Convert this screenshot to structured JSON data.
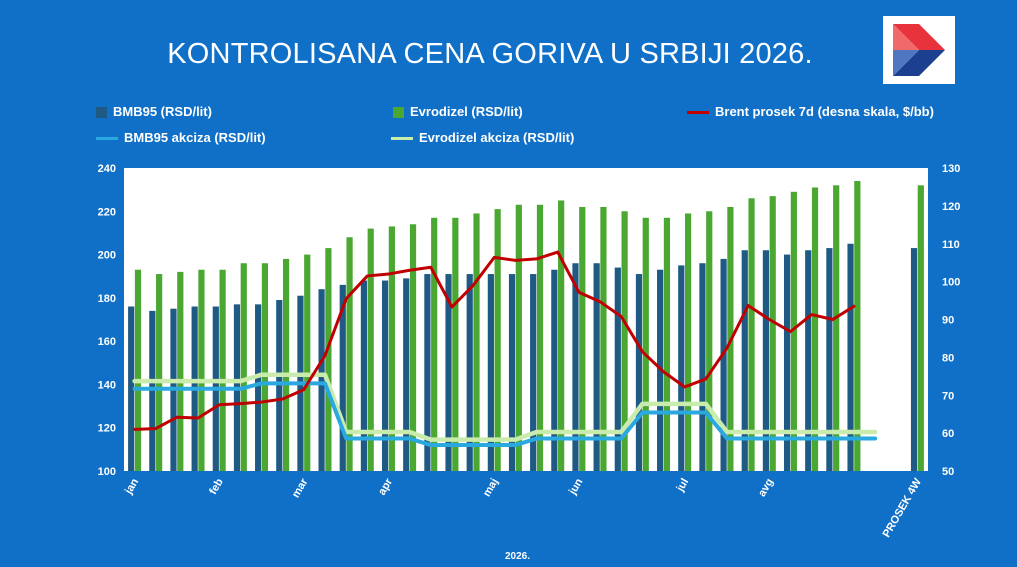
{
  "chart_data": {
    "type": "bar",
    "title": "KONTROLISANA CENA GORIVA  U SRBIJI 2026.",
    "xlabel": "2026.",
    "ylabel": "",
    "ylim": [
      100,
      240
    ],
    "y2lim": [
      50,
      130
    ],
    "yticks": [
      100,
      120,
      140,
      160,
      180,
      200,
      220,
      240
    ],
    "y2ticks": [
      50,
      60,
      70,
      80,
      90,
      100,
      110,
      120,
      130
    ],
    "grid": false,
    "legend_position": "top",
    "x_tick_labels": [
      "jan",
      "feb",
      "mar",
      "apr",
      "maj",
      "jun",
      "jul",
      "avg",
      "PROSEK 4W"
    ],
    "x_tick_positions": [
      0,
      4,
      8,
      12,
      17,
      21,
      26,
      30,
      37
    ],
    "categories_count": 38,
    "series": [
      {
        "name": "BMB95 (RSD/lit)",
        "kind": "bar",
        "axis": "left",
        "color": "#1f5a84",
        "values": [
          176,
          174,
          175,
          176,
          176,
          177,
          177,
          179,
          181,
          184,
          186,
          188,
          188,
          189,
          191,
          191,
          191,
          191,
          191,
          191,
          193,
          196,
          196,
          194,
          191,
          193,
          195,
          196,
          198,
          202,
          202,
          200,
          202,
          203,
          205,
          null,
          null,
          203
        ]
      },
      {
        "name": "Evrodizel (RSD/lit)",
        "kind": "bar",
        "axis": "left",
        "color": "#4aa832",
        "values": [
          193,
          191,
          192,
          193,
          193,
          196,
          196,
          198,
          200,
          203,
          208,
          212,
          213,
          214,
          217,
          217,
          219,
          221,
          223,
          223,
          225,
          222,
          222,
          220,
          217,
          217,
          219,
          220,
          222,
          226,
          227,
          229,
          231,
          232,
          234,
          null,
          null,
          232
        ]
      },
      {
        "name": "Brent prosek  7d (desna skala, $/bb)",
        "kind": "line",
        "axis": "right",
        "color": "#c00000",
        "values": [
          61,
          61.2,
          64.2,
          64,
          67.5,
          67.8,
          68.2,
          69,
          71.5,
          80.5,
          95.5,
          101.5,
          102,
          103,
          103.8,
          93.3,
          99,
          106.4,
          105.6,
          106,
          107.8,
          97.2,
          94.7,
          90.8,
          81.5,
          76.2,
          72.2,
          74.3,
          82.5,
          93.7,
          90,
          86.8,
          91.3,
          90,
          93.5
        ]
      },
      {
        "name": "BMB95 akciza (RSD/lit)",
        "kind": "line",
        "axis": "left",
        "color": "#2aa8e0",
        "values": [
          138,
          138,
          138,
          138,
          138,
          138,
          140.5,
          140.5,
          140.5,
          140.5,
          115,
          115,
          115,
          115,
          112,
          112,
          112,
          112,
          112,
          115,
          115,
          115,
          115,
          115,
          127,
          127,
          127,
          127,
          115,
          115,
          115,
          115,
          115,
          115,
          115,
          115
        ]
      },
      {
        "name": "Evrodizel akciza (RSD/lit)",
        "kind": "line",
        "axis": "left",
        "color": "#c9ecac",
        "values": [
          141.5,
          141.5,
          141.5,
          141.5,
          141.5,
          141.5,
          144.5,
          144.5,
          144.5,
          144.5,
          118,
          118,
          118,
          118,
          114.5,
          114.5,
          114.5,
          114.5,
          114.5,
          118,
          118,
          118,
          118,
          118,
          131,
          131,
          131,
          131,
          118,
          118,
          118,
          118,
          118,
          118,
          118,
          118
        ]
      }
    ]
  }
}
